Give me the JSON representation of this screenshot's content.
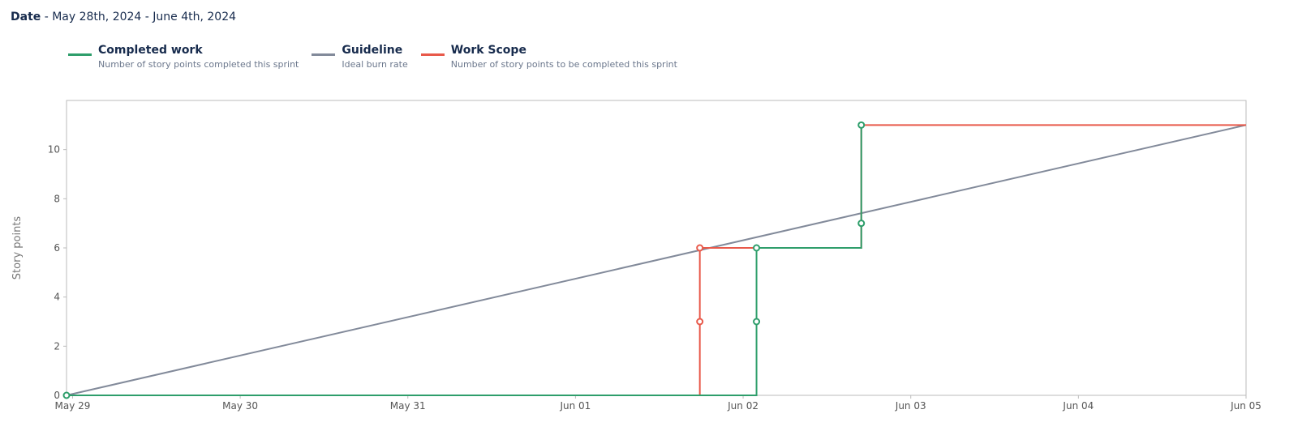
{
  "header": {
    "date_label": "Date",
    "date_range": " - May 28th, 2024 - June 4th, 2024"
  },
  "chart_data": {
    "type": "line",
    "ylabel": "Story points",
    "ylim": [
      0,
      12
    ],
    "xlim": [
      "2024-05-28T23:08:00",
      "2024-06-05T00:00:00"
    ],
    "yticks": [
      0,
      2,
      4,
      6,
      8,
      10
    ],
    "xticks": [
      {
        "t": "2024-05-29T00:00:00",
        "label": "May 29"
      },
      {
        "t": "2024-05-30T00:00:00",
        "label": "May 30"
      },
      {
        "t": "2024-05-31T00:00:00",
        "label": "May 31"
      },
      {
        "t": "2024-06-01T00:00:00",
        "label": "Jun 01"
      },
      {
        "t": "2024-06-02T00:00:00",
        "label": "Jun 02"
      },
      {
        "t": "2024-06-03T00:00:00",
        "label": "Jun 03"
      },
      {
        "t": "2024-06-04T00:00:00",
        "label": "Jun 04"
      },
      {
        "t": "2024-06-05T00:00:00",
        "label": "Jun 05"
      }
    ],
    "grid": false,
    "legend_placement": "top-left",
    "series": [
      {
        "name": "Guideline",
        "description": "Ideal burn rate",
        "color": "#828a9a",
        "step": false,
        "markers": false,
        "points": [
          [
            "2024-05-28T23:08:00",
            0
          ],
          [
            "2024-06-05T00:00:00",
            11
          ]
        ]
      },
      {
        "name": "Work Scope",
        "description": "Number of story points to be completed this sprint",
        "color": "#e8594a",
        "step": true,
        "markers": true,
        "points": [
          [
            "2024-05-28T23:08:00",
            0
          ],
          [
            "2024-06-01T17:48:00",
            3
          ],
          [
            "2024-06-01T17:48:00",
            6
          ],
          [
            "2024-06-02T16:55:00",
            11
          ],
          [
            "2024-06-05T00:00:00",
            11
          ]
        ],
        "marker_idx": [
          1,
          2
        ]
      },
      {
        "name": "Completed work",
        "description": "Number of story points completed this sprint",
        "color": "#2e9e6b",
        "step": true,
        "markers": true,
        "points": [
          [
            "2024-05-28T23:08:00",
            0
          ],
          [
            "2024-06-02T01:55:00",
            3
          ],
          [
            "2024-06-02T01:55:00",
            6
          ],
          [
            "2024-06-02T16:55:00",
            7
          ],
          [
            "2024-06-02T16:55:00",
            11
          ]
        ],
        "marker_idx": [
          0,
          1,
          2,
          3,
          4
        ]
      }
    ]
  }
}
